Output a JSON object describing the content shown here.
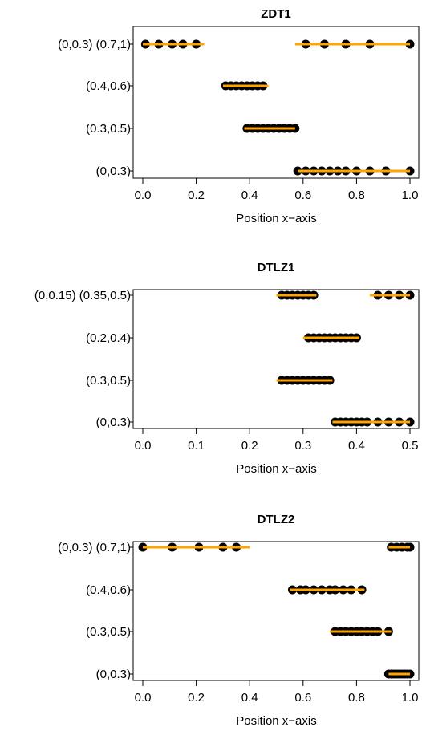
{
  "chart_data": [
    {
      "type": "scatter",
      "title": "ZDT1",
      "xlabel": "Position x−axis",
      "ylabel": "",
      "xlim": [
        0,
        1
      ],
      "xticks": [
        "0.0",
        "0.2",
        "0.4",
        "0.6",
        "0.8",
        "1.0"
      ],
      "rows": [
        {
          "label": "(0,0.3)",
          "segments": [
            [
              0.58,
              1.0
            ]
          ],
          "points": [
            0.58,
            0.61,
            0.64,
            0.67,
            0.7,
            0.73,
            0.76,
            0.8,
            0.85,
            0.91,
            1.0
          ]
        },
        {
          "label": "(0.3,0.5)",
          "segments": [
            [
              0.38,
              0.57
            ]
          ],
          "points": [
            0.39,
            0.41,
            0.43,
            0.45,
            0.47,
            0.49,
            0.51,
            0.53,
            0.55,
            0.57
          ]
        },
        {
          "label": "(0.4,0.6)",
          "segments": [
            [
              0.3,
              0.47
            ]
          ],
          "points": [
            0.31,
            0.33,
            0.35,
            0.37,
            0.39,
            0.41,
            0.43,
            0.45
          ]
        },
        {
          "label": "(0,0.3) (0.7,1)",
          "segments": [
            [
              0.0,
              0.23
            ],
            [
              0.57,
              1.0
            ]
          ],
          "points": [
            0.01,
            0.06,
            0.11,
            0.15,
            0.2,
            0.61,
            0.68,
            0.76,
            0.85,
            1.0
          ]
        }
      ]
    },
    {
      "type": "scatter",
      "title": "DTLZ1",
      "xlabel": "Position x−axis",
      "ylabel": "",
      "xlim": [
        0,
        0.5
      ],
      "xticks": [
        "0.0",
        "0.1",
        "0.2",
        "0.3",
        "0.4",
        "0.5"
      ],
      "rows": [
        {
          "label": "(0,0.3)",
          "segments": [
            [
              0.355,
              0.5
            ]
          ],
          "points": [
            0.36,
            0.37,
            0.38,
            0.39,
            0.4,
            0.41,
            0.42,
            0.44,
            0.46,
            0.48,
            0.5
          ]
        },
        {
          "label": "(0.3,0.5)",
          "segments": [
            [
              0.25,
              0.355
            ]
          ],
          "points": [
            0.26,
            0.27,
            0.28,
            0.29,
            0.3,
            0.31,
            0.32,
            0.33,
            0.34,
            0.35
          ]
        },
        {
          "label": "(0.2,0.4)",
          "segments": [
            [
              0.3,
              0.405
            ]
          ],
          "points": [
            0.31,
            0.32,
            0.33,
            0.34,
            0.35,
            0.36,
            0.37,
            0.38,
            0.39,
            0.4
          ]
        },
        {
          "label": "(0,0.15) (0.35,0.5)",
          "segments": [
            [
              0.25,
              0.325
            ],
            [
              0.425,
              0.5
            ]
          ],
          "points": [
            0.26,
            0.27,
            0.28,
            0.29,
            0.3,
            0.31,
            0.32,
            0.44,
            0.46,
            0.48,
            0.5
          ]
        }
      ]
    },
    {
      "type": "scatter",
      "title": "DTLZ2",
      "xlabel": "Position x−axis",
      "ylabel": "",
      "xlim": [
        0,
        1
      ],
      "xticks": [
        "0.0",
        "0.2",
        "0.4",
        "0.6",
        "0.8",
        "1.0"
      ],
      "rows": [
        {
          "label": "(0,0.3)",
          "segments": [
            [
              0.92,
              1.0
            ]
          ],
          "points": [
            0.92,
            0.93,
            0.94,
            0.95,
            0.96,
            0.97,
            0.98,
            0.99,
            1.0
          ]
        },
        {
          "label": "(0.3,0.5)",
          "segments": [
            [
              0.7,
              0.93
            ]
          ],
          "points": [
            0.72,
            0.74,
            0.76,
            0.78,
            0.8,
            0.82,
            0.84,
            0.86,
            0.88,
            0.92
          ]
        },
        {
          "label": "(0.4,0.6)",
          "segments": [
            [
              0.55,
              0.83
            ]
          ],
          "points": [
            0.56,
            0.59,
            0.61,
            0.64,
            0.67,
            0.7,
            0.72,
            0.75,
            0.78,
            0.82
          ]
        },
        {
          "label": "(0,0.3) (0.7,1)",
          "segments": [
            [
              0.0,
              0.4
            ],
            [
              0.92,
              1.0
            ]
          ],
          "points": [
            0.0,
            0.11,
            0.21,
            0.3,
            0.35,
            0.93,
            0.95,
            0.97,
            0.99,
            1.0
          ]
        }
      ]
    }
  ]
}
